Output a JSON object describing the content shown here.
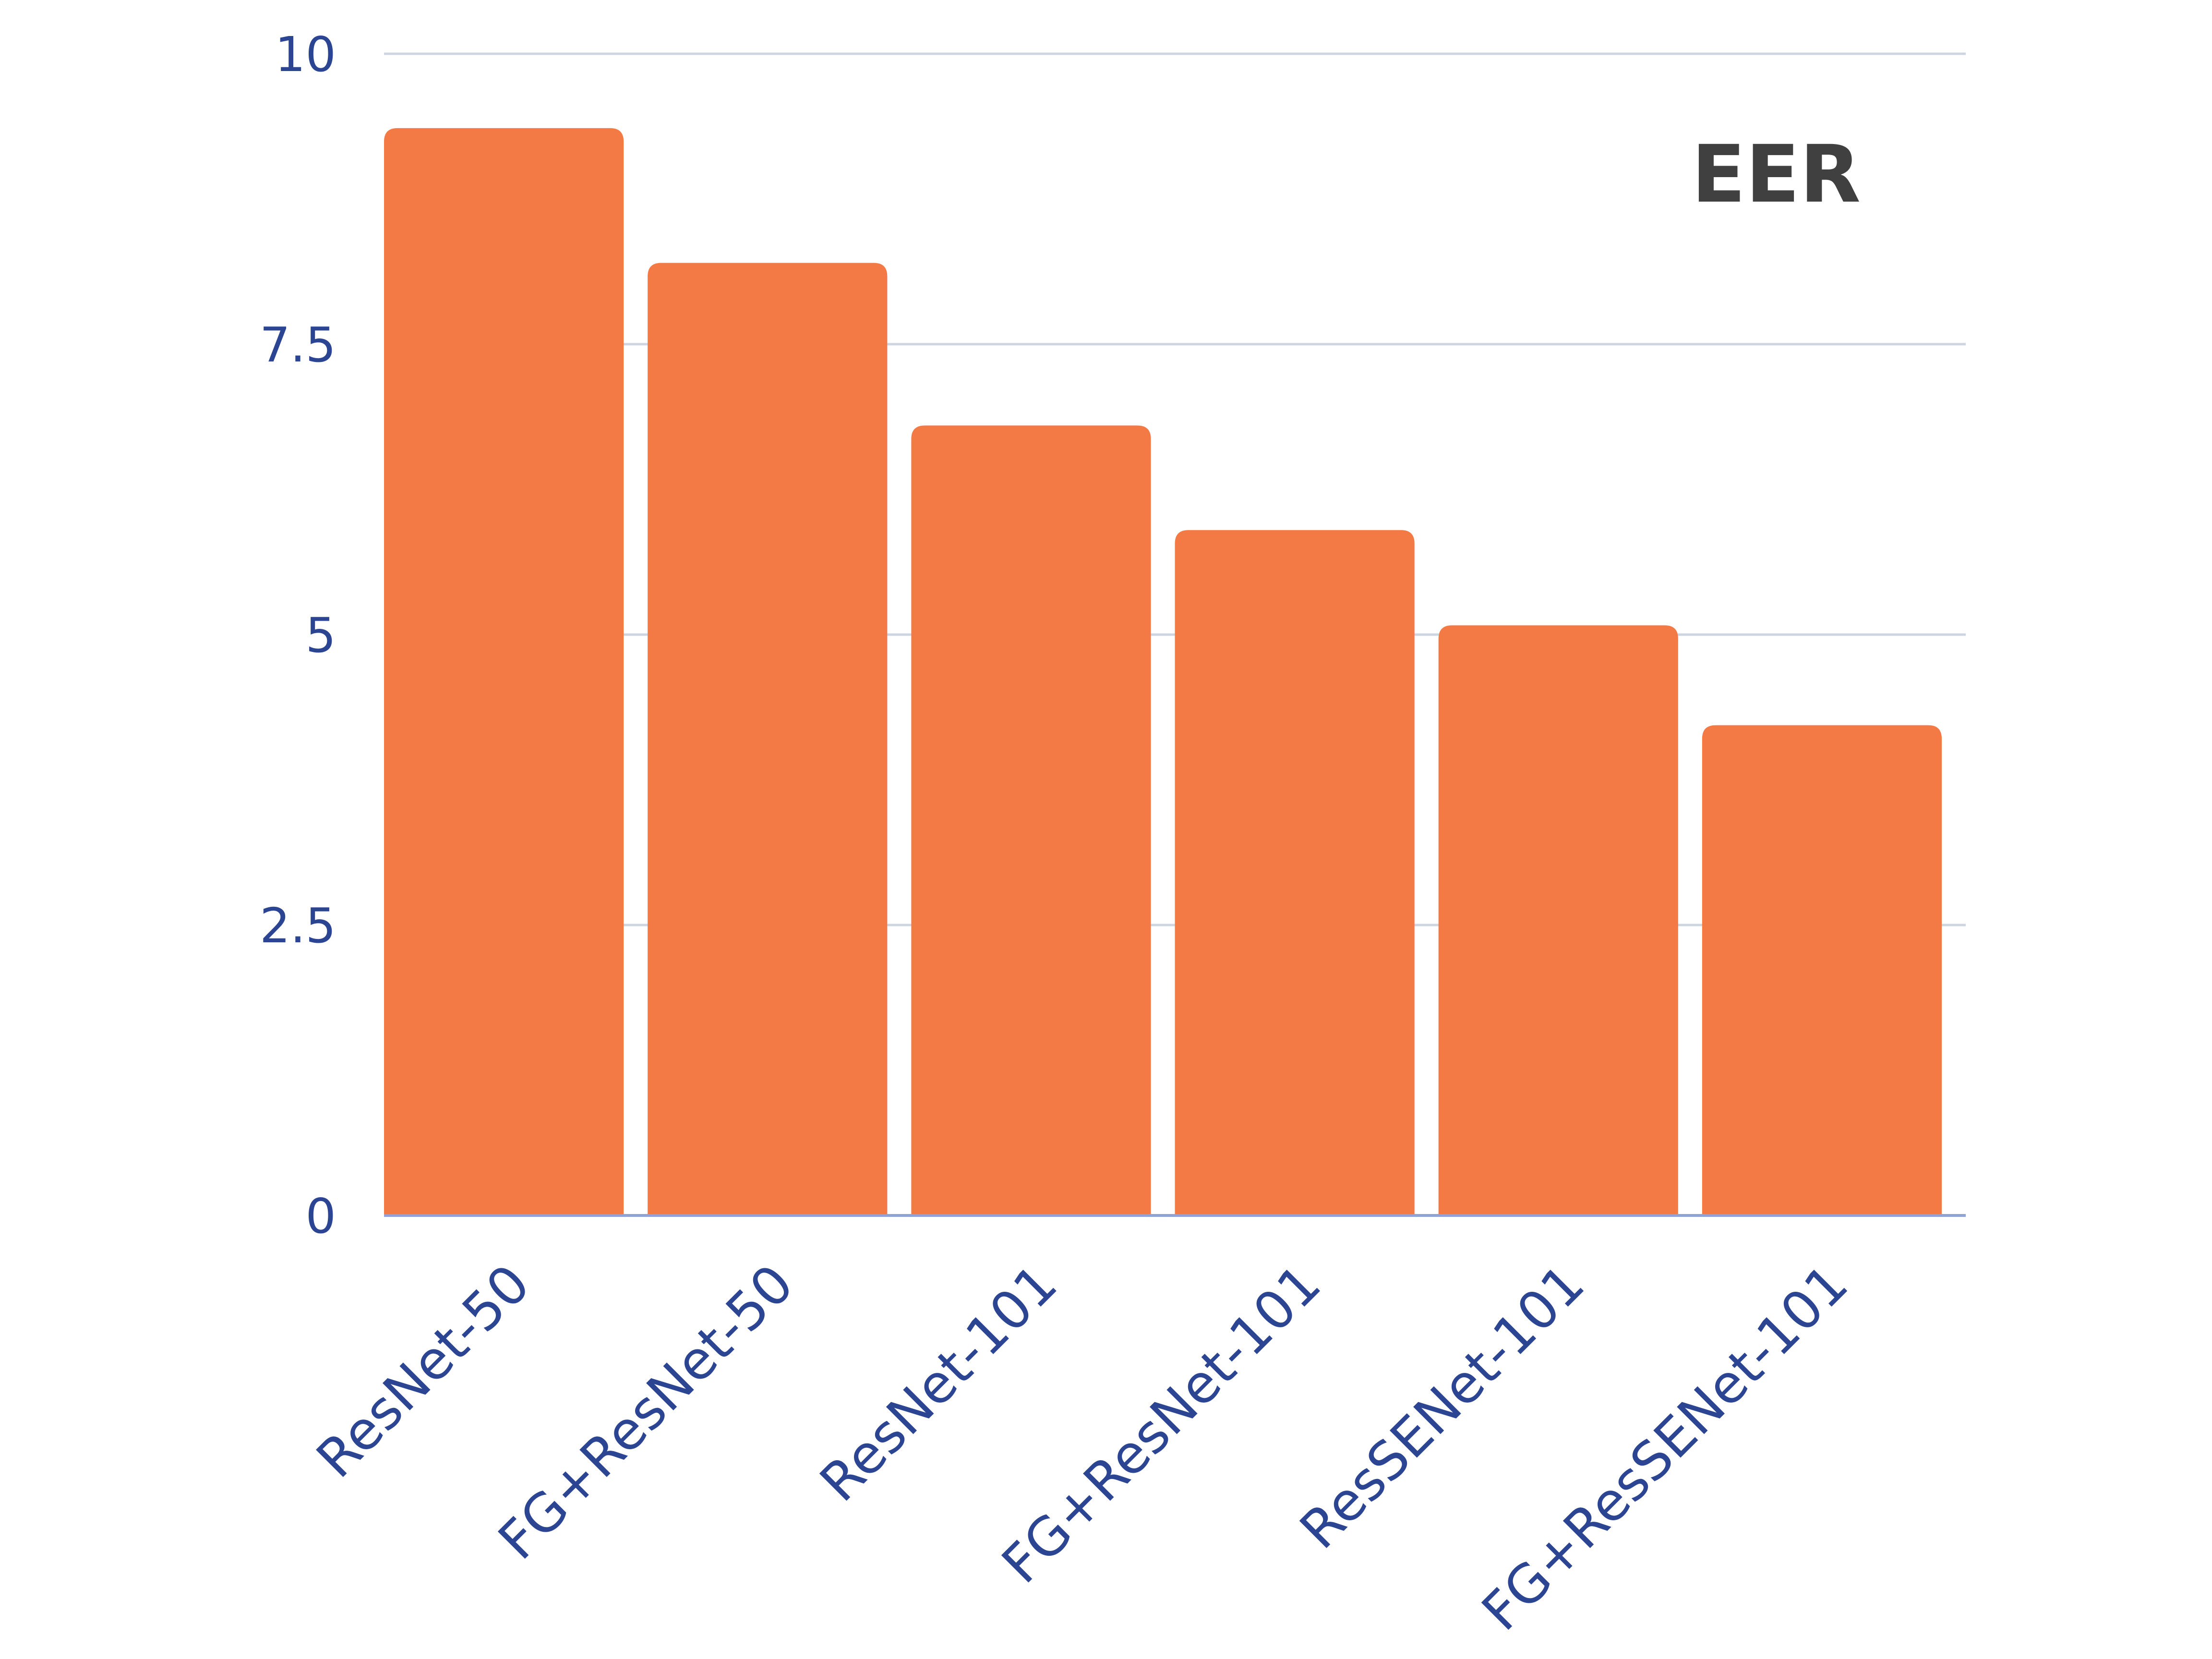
{
  "chart_data": {
    "type": "bar",
    "categories": [
      "ResNet-50",
      "FG+ResNet-50",
      "ResNet-101",
      "FG+ResNet-101",
      "ResSENet-101",
      "FG+ResSENet-101"
    ],
    "series": [
      {
        "name": "EER",
        "values": [
          9.36,
          8.2,
          6.8,
          5.9,
          5.08,
          4.22
        ],
        "color": "#f37945"
      }
    ],
    "ylim": [
      0,
      10
    ],
    "yticks": [
      0,
      2.5,
      5,
      7.5,
      10
    ],
    "ytick_labels": [
      "0",
      "2.5",
      "5",
      "7.5",
      "10"
    ],
    "grid": true,
    "legend_placement": "top-right",
    "title": "",
    "xlabel": "",
    "ylabel": "",
    "colors": {
      "bar": "#f37945",
      "grid": "#cdd5e0",
      "axis": "#8fa3d6",
      "tick_text": "#2b4593",
      "legend_text": "#404040"
    }
  }
}
